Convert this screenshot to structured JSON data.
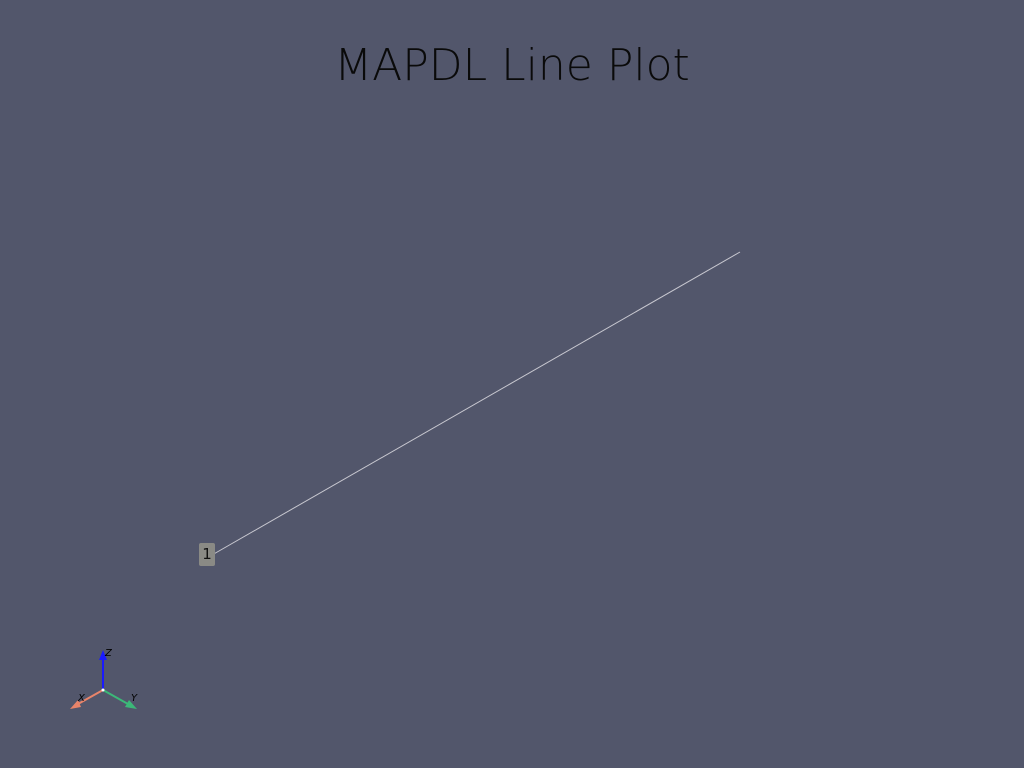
{
  "title": "MAPDL Line Plot",
  "line": {
    "label": "1",
    "color": "#c8c8d0"
  },
  "background_color": "#52566b",
  "axes_triad": {
    "x_label": "X",
    "y_label": "Y",
    "z_label": "Z",
    "x_color": "#e8846a",
    "y_color": "#3cb878",
    "z_color": "#1a1aff"
  }
}
